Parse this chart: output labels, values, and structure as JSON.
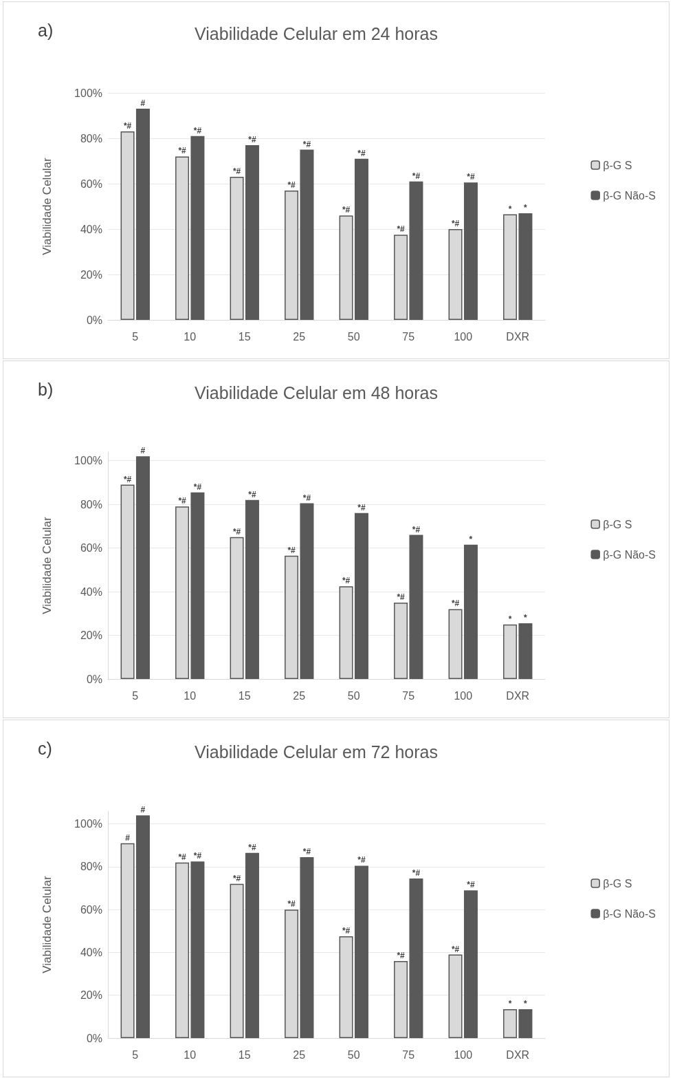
{
  "chart_data": [
    {
      "type": "bar",
      "title": "Viabilidade Celular em 24 horas",
      "ylabel": "Viabilidade Celular",
      "annotations": [
        "a)"
      ],
      "categories": [
        "5",
        "10",
        "15",
        "25",
        "50",
        "75",
        "100",
        "DXR"
      ],
      "ylim": [
        0,
        100
      ],
      "yticks": [
        {
          "value": 0,
          "label": "0%"
        },
        {
          "value": 20,
          "label": "20%"
        },
        {
          "value": 40,
          "label": "40%"
        },
        {
          "value": 60,
          "label": "60%"
        },
        {
          "value": 80,
          "label": "80%"
        },
        {
          "value": 100,
          "label": "100%"
        }
      ],
      "grid": "y",
      "legend": "right",
      "series": [
        {
          "name": "β-G S",
          "color": "#d9d9d9",
          "values": [
            83,
            72,
            63,
            57,
            46,
            37.5,
            40,
            46.5
          ],
          "value_labels": [
            "*#",
            "*#",
            "*#",
            "*#",
            "*#",
            "*#",
            "*#",
            "*"
          ]
        },
        {
          "name": "β-G Não-S",
          "color": "#595959",
          "values": [
            93,
            81,
            77,
            75,
            71,
            61,
            60.5,
            47
          ],
          "value_labels": [
            "#",
            "*#",
            "*#",
            "*#",
            "*#",
            "*#",
            "*#",
            "*"
          ]
        }
      ]
    },
    {
      "type": "bar",
      "title": "Viabilidade Celular em 48 horas",
      "ylabel": "Viabilidade Celular",
      "annotations": [
        "b)"
      ],
      "categories": [
        "5",
        "10",
        "15",
        "25",
        "50",
        "75",
        "100",
        "DXR"
      ],
      "ylim": [
        0,
        104
      ],
      "yticks": [
        {
          "value": 0,
          "label": "0%"
        },
        {
          "value": 20,
          "label": "20%"
        },
        {
          "value": 40,
          "label": "40%"
        },
        {
          "value": 60,
          "label": "60%"
        },
        {
          "value": 80,
          "label": "80%"
        },
        {
          "value": 100,
          "label": "100%"
        }
      ],
      "grid": "y",
      "legend": "right",
      "series": [
        {
          "name": "β-G S",
          "color": "#d9d9d9",
          "values": [
            89,
            79,
            65,
            56.5,
            42.5,
            35,
            32,
            25
          ],
          "value_labels": [
            "*#",
            "*#",
            "*#",
            "*#",
            "*#",
            "*#",
            "*#",
            "*"
          ]
        },
        {
          "name": "β-G Não-S",
          "color": "#595959",
          "values": [
            102,
            85.5,
            82,
            80.5,
            76,
            66,
            61.5,
            25.5
          ],
          "value_labels": [
            "#",
            "*#",
            "*#",
            "*#",
            "*#",
            "*#",
            "*",
            "*"
          ]
        }
      ]
    },
    {
      "type": "bar",
      "title": "Viabilidade Celular em 72 horas",
      "ylabel": "Viabilidade Celular",
      "annotations": [
        "c)"
      ],
      "categories": [
        "5",
        "10",
        "15",
        "25",
        "50",
        "75",
        "100",
        "DXR"
      ],
      "ylim": [
        0,
        106
      ],
      "yticks": [
        {
          "value": 0,
          "label": "0%"
        },
        {
          "value": 20,
          "label": "20%"
        },
        {
          "value": 40,
          "label": "40%"
        },
        {
          "value": 60,
          "label": "60%"
        },
        {
          "value": 80,
          "label": "80%"
        },
        {
          "value": 100,
          "label": "100%"
        }
      ],
      "grid": "y",
      "legend": "right",
      "series": [
        {
          "name": "β-G S",
          "color": "#d9d9d9",
          "values": [
            91,
            82,
            72,
            60,
            47.5,
            36,
            39,
            13.5
          ],
          "value_labels": [
            "#",
            "*#",
            "*#",
            "*#",
            "*#",
            "*#",
            "*#",
            "*"
          ]
        },
        {
          "name": "β-G Não-S",
          "color": "#595959",
          "values": [
            104,
            82.5,
            86.5,
            84.5,
            80.5,
            74.5,
            69,
            13.5
          ],
          "value_labels": [
            "#",
            "*#",
            "*#",
            "*#",
            "*#",
            "*#",
            "*#",
            "*"
          ]
        }
      ]
    }
  ]
}
